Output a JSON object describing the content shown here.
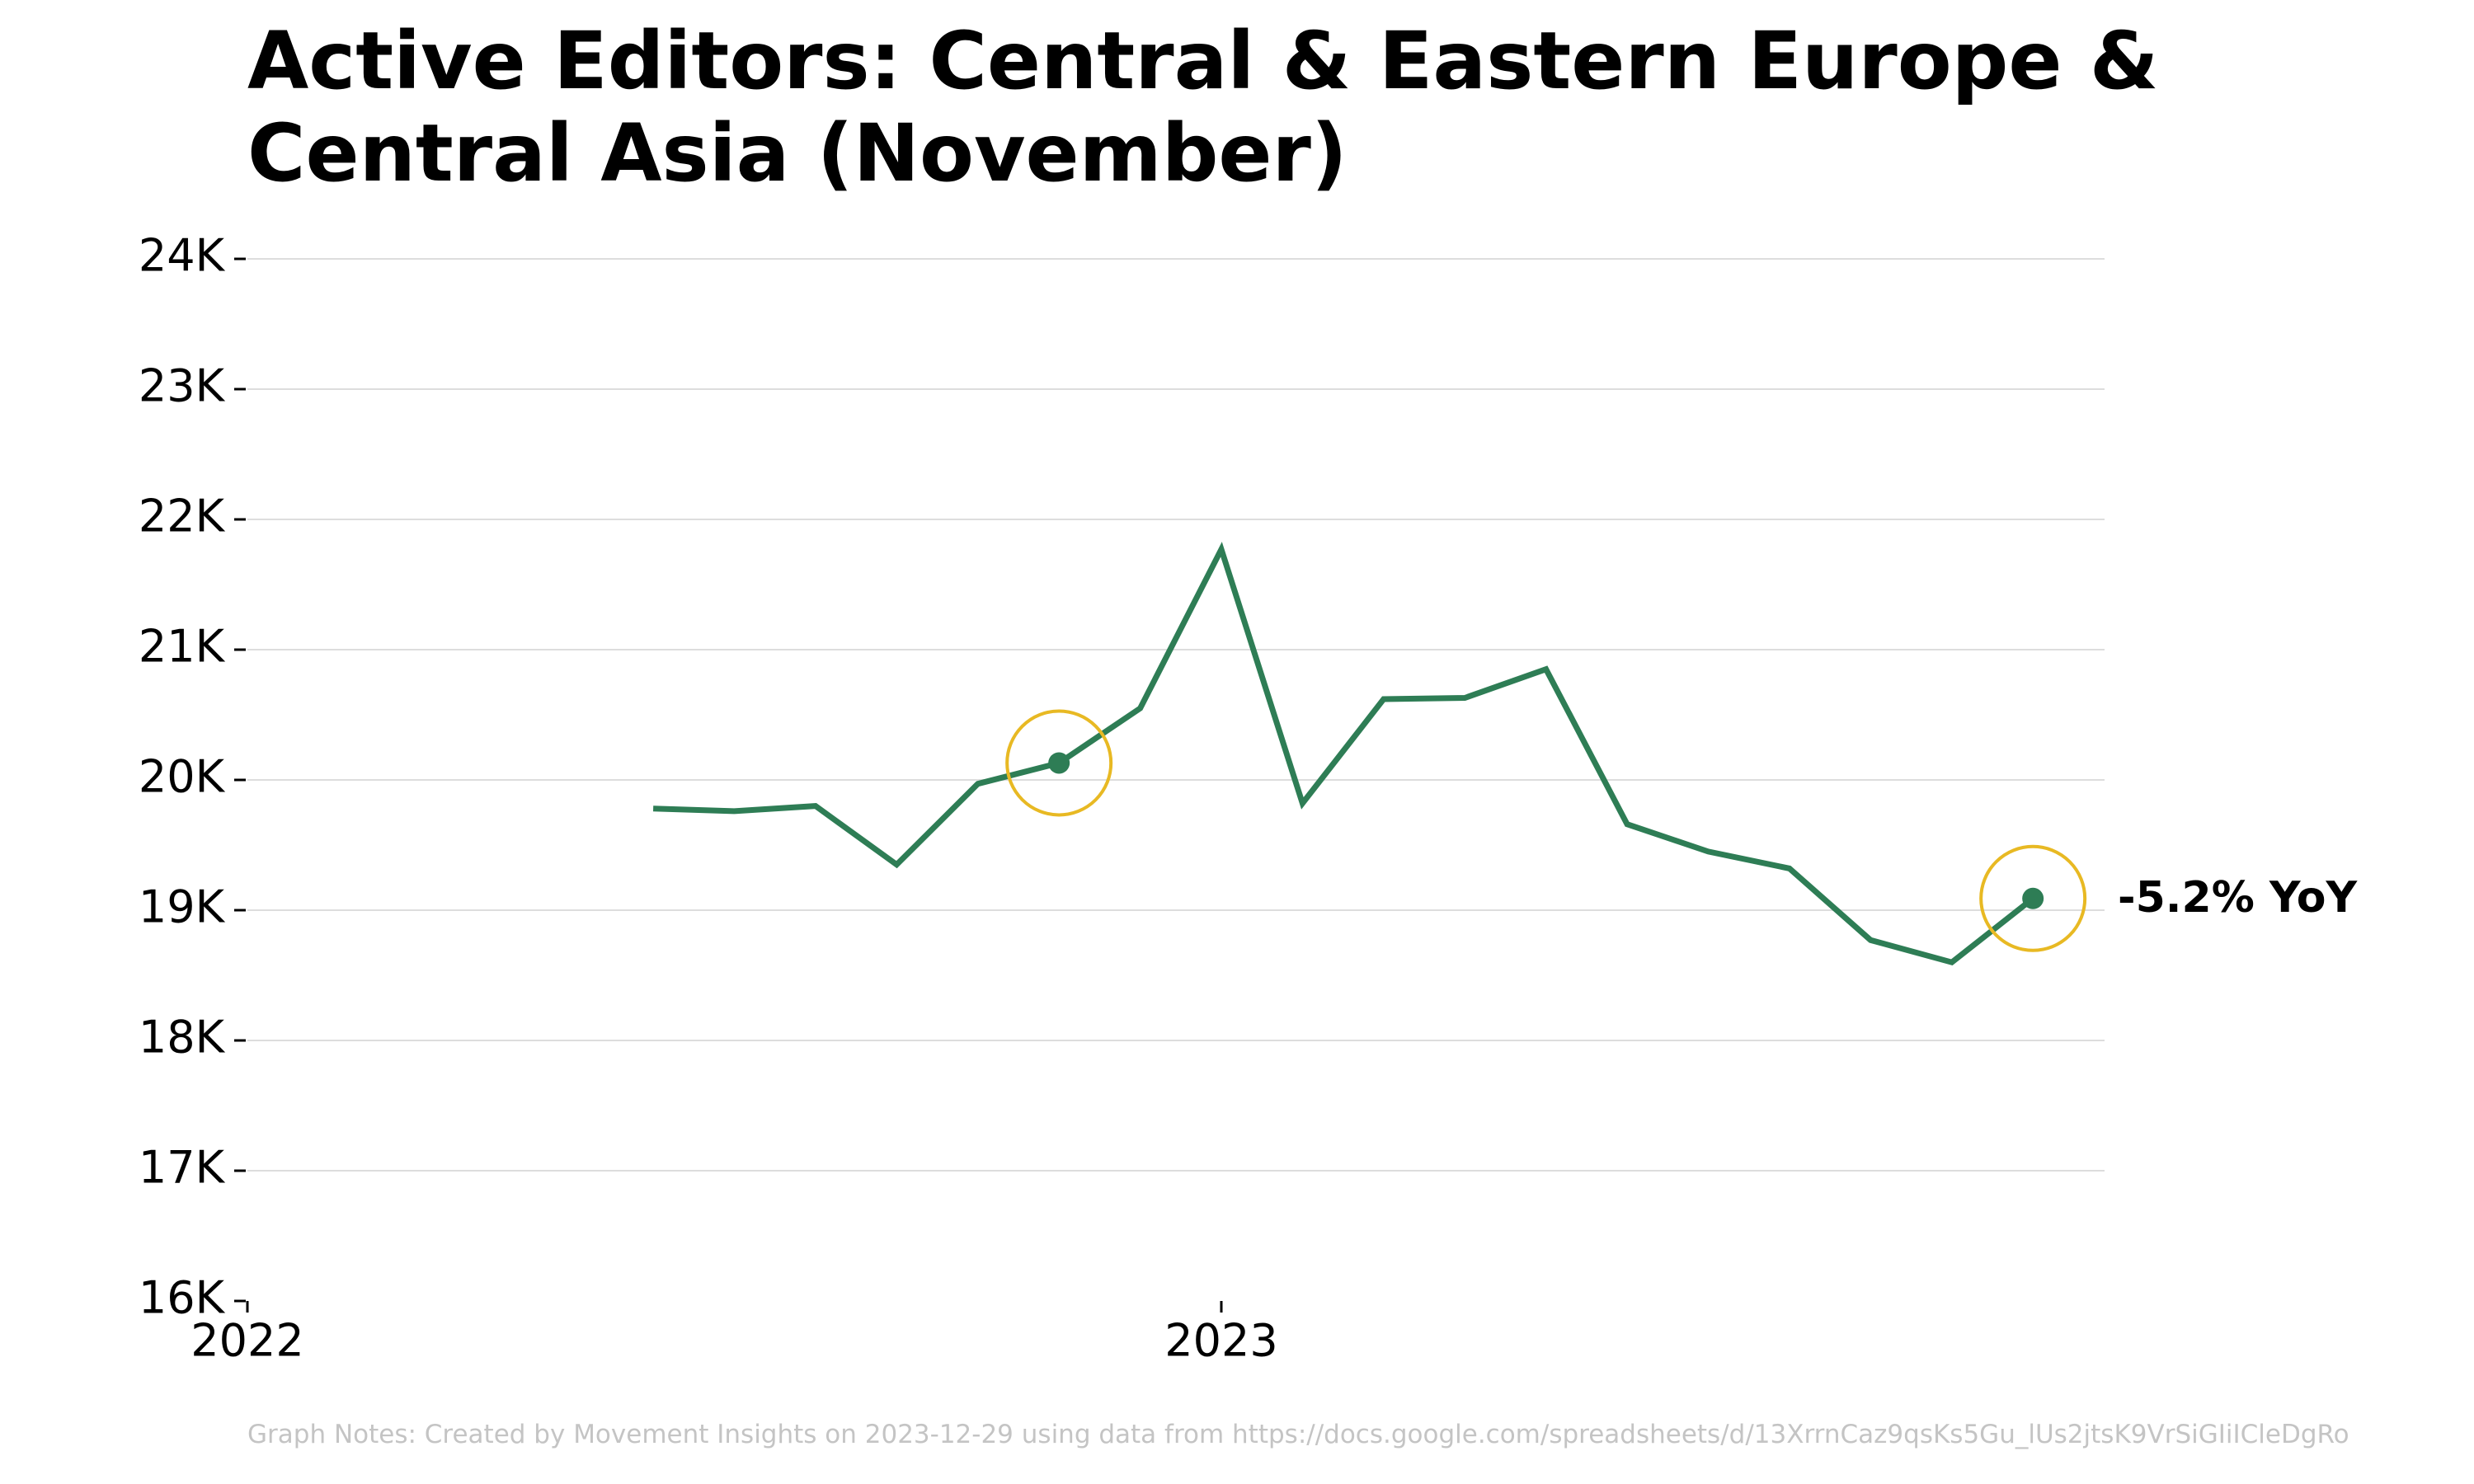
{
  "chart_data": {
    "type": "line",
    "title": "Active Editors: Central & Eastern Europe & Central Asia (November)",
    "xlabel": "",
    "ylabel": "",
    "x_ticks": [
      "2022",
      "2023"
    ],
    "y_ticks": [
      "16K",
      "17K",
      "18K",
      "19K",
      "20K",
      "21K",
      "22K",
      "23K",
      "24K"
    ],
    "ylim": [
      16000,
      24000
    ],
    "xlim": [
      "2022-01",
      "2023-12"
    ],
    "grid": true,
    "series": [
      {
        "color": "#2e7d55",
        "points": [
          {
            "x": "2022-06",
            "y": 19780
          },
          {
            "x": "2022-07",
            "y": 19760
          },
          {
            "x": "2022-08",
            "y": 19800
          },
          {
            "x": "2022-09",
            "y": 19350
          },
          {
            "x": "2022-10",
            "y": 19970
          },
          {
            "x": "2022-11",
            "y": 20130
          },
          {
            "x": "2022-12",
            "y": 20550
          },
          {
            "x": "2023-01",
            "y": 21770
          },
          {
            "x": "2023-02",
            "y": 19820
          },
          {
            "x": "2023-03",
            "y": 20620
          },
          {
            "x": "2023-04",
            "y": 20630
          },
          {
            "x": "2023-05",
            "y": 20850
          },
          {
            "x": "2023-06",
            "y": 19660
          },
          {
            "x": "2023-07",
            "y": 19450
          },
          {
            "x": "2023-08",
            "y": 19320
          },
          {
            "x": "2023-09",
            "y": 18770
          },
          {
            "x": "2023-10",
            "y": 18600
          },
          {
            "x": "2023-11",
            "y": 19090
          }
        ]
      }
    ],
    "highlights": [
      {
        "x": "2022-11",
        "y": 20130
      },
      {
        "x": "2023-11",
        "y": 19090
      }
    ],
    "annotation": "-5.2% YoY",
    "highlight_color": "#e8b923",
    "gridline_color": "#dddddd"
  },
  "footnote": "Graph Notes: Created by Movement Insights  on 2023-12-29 using data from https://docs.google.com/spreadsheets/d/13XrrnCaz9qsKs5Gu_lUs2jtsK9VrSiGIiICleDgRo"
}
